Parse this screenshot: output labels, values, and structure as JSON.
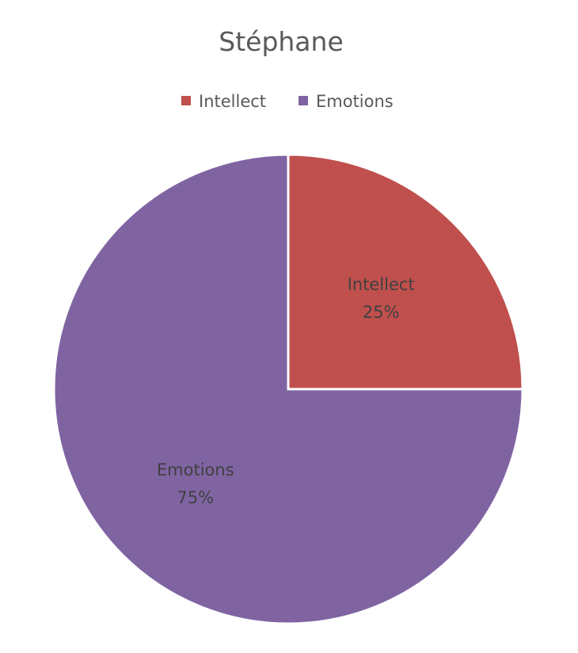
{
  "chart_data": {
    "type": "pie",
    "title": "Stéphane",
    "categories": [
      "Intellect",
      "Emotions"
    ],
    "values": [
      25,
      75
    ],
    "value_labels": [
      "25%",
      "75%"
    ],
    "colors": [
      "#C0504D",
      "#8064A2"
    ],
    "legend": {
      "position": "top",
      "entries": [
        "Intellect",
        "Emotions"
      ]
    },
    "start_angle": "12 o'clock",
    "direction": "clockwise"
  }
}
